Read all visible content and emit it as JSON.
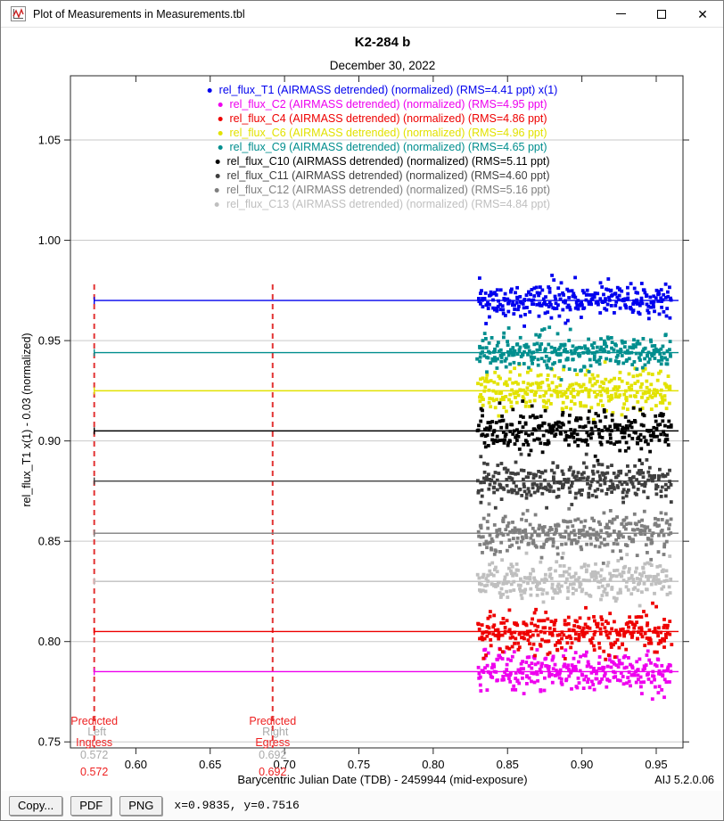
{
  "window": {
    "title": "Plot of Measurements in Measurements.tbl"
  },
  "toolbar": {
    "copy_label": "Copy...",
    "pdf_label": "PDF",
    "png_label": "PNG",
    "status": "x=0.9835, y=0.7516"
  },
  "chart_data": {
    "type": "scatter",
    "title": "K2-284 b",
    "subtitle": "December 30, 2022",
    "xlabel": "Barycentric Julian Date (TDB) - 2459944 (mid-exposure)",
    "ylabel": "rel_flux_T1 x(1) - 0.03 (normalized)",
    "version": "AIJ 5.2.0.06",
    "xlim": [
      0.556,
      0.968
    ],
    "ylim": [
      0.747,
      1.082
    ],
    "x_ticks": [
      0.6,
      0.65,
      0.7,
      0.75,
      0.8,
      0.85,
      0.9,
      0.95
    ],
    "y_ticks": [
      0.75,
      0.8,
      0.85,
      0.9,
      0.95,
      1.0,
      1.05
    ],
    "grid": "horizontal",
    "grid_color": "#c9c9c9",
    "legend_position": "top-center",
    "x_data_range": [
      0.83,
      0.96
    ],
    "points_per_series": 295,
    "series": [
      {
        "label": "rel_flux_T1 (AIRMASS detrended) (normalized) (RMS=4.41 ppt) x(1)",
        "color": "#0000ee",
        "baseline": 0.97,
        "rms_ppt": 4.41
      },
      {
        "label": "rel_flux_C2 (AIRMASS detrended) (normalized) (RMS=4.95 ppt)",
        "color": "#ee00ee",
        "baseline": 0.785,
        "rms_ppt": 4.95
      },
      {
        "label": "rel_flux_C4 (AIRMASS detrended) (normalized) (RMS=4.86 ppt)",
        "color": "#ee0000",
        "baseline": 0.805,
        "rms_ppt": 4.86
      },
      {
        "label": "rel_flux_C6 (AIRMASS detrended) (normalized) (RMS=4.96 ppt)",
        "color": "#e2e200",
        "baseline": 0.925,
        "rms_ppt": 4.96
      },
      {
        "label": "rel_flux_C9 (AIRMASS detrended) (normalized) (RMS=4.65 ppt)",
        "color": "#008e8e",
        "baseline": 0.944,
        "rms_ppt": 4.65
      },
      {
        "label": "rel_flux_C10 (AIRMASS detrended) (normalized) (RMS=5.11 ppt)",
        "color": "#000000",
        "baseline": 0.905,
        "rms_ppt": 5.11
      },
      {
        "label": "rel_flux_C11 (AIRMASS detrended) (normalized) (RMS=4.60 ppt)",
        "color": "#3f3f3f",
        "baseline": 0.88,
        "rms_ppt": 4.6
      },
      {
        "label": "rel_flux_C12 (AIRMASS detrended) (normalized) (RMS=5.16 ppt)",
        "color": "#7f7f7f",
        "baseline": 0.854,
        "rms_ppt": 5.16
      },
      {
        "label": "rel_flux_C13 (AIRMASS detrended) (normalized) (RMS=4.84 ppt)",
        "color": "#bfbfbf",
        "baseline": 0.83,
        "rms_ppt": 4.84
      }
    ],
    "markers": {
      "line_color": "#e23333",
      "text_color": "#ee2222",
      "fit_text_color": "#aaaaaa",
      "ingress": {
        "x": 0.572,
        "label_top": "Predicted",
        "label_bottom": "Ingress",
        "value": "0.572",
        "fit_label": "Left",
        "fit_value": "0.572"
      },
      "egress": {
        "x": 0.692,
        "label_top": "Predicted",
        "label_bottom": "Egress",
        "value": "0.692",
        "fit_label": "Right",
        "fit_value": "0.692"
      }
    }
  }
}
